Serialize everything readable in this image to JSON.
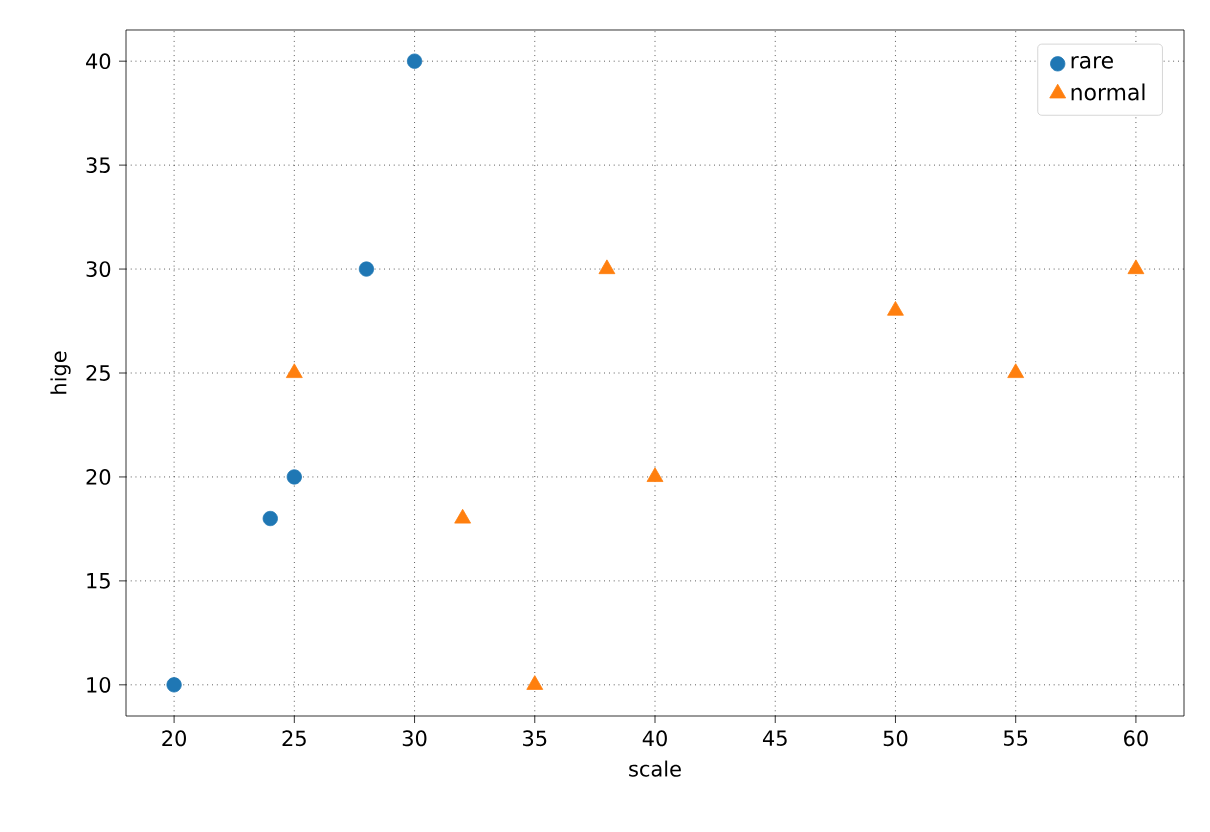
{
  "chart_data": {
    "type": "scatter",
    "xlabel": "scale",
    "ylabel": "hige",
    "xlim": [
      18,
      62
    ],
    "ylim": [
      8.5,
      41.5
    ],
    "xticks": [
      20,
      25,
      30,
      35,
      40,
      45,
      50,
      55,
      60
    ],
    "yticks": [
      10,
      15,
      20,
      25,
      30,
      35,
      40
    ],
    "grid": true,
    "legend": "top right",
    "series": [
      {
        "name": "rare",
        "color": "#1f77b4",
        "marker": "circle",
        "x": [
          20,
          24,
          25,
          28,
          30
        ],
        "values": [
          10,
          18,
          20,
          30,
          40
        ]
      },
      {
        "name": "normal",
        "color": "#ff7f0e",
        "marker": "triangle",
        "x": [
          25,
          32,
          35,
          38,
          40,
          50,
          55,
          60
        ],
        "values": [
          25,
          18,
          10,
          30,
          20,
          28,
          25,
          30
        ]
      }
    ]
  }
}
